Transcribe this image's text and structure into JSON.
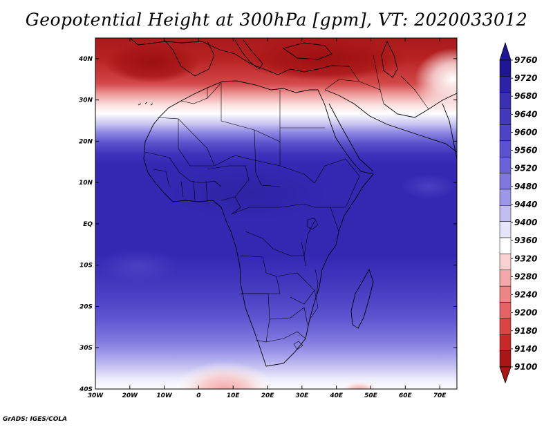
{
  "title": "Geopotential Height at 300hPa [gpm], VT: 2020033012",
  "footer": "GrADS: IGES/COLA",
  "map": {
    "lon_range": [
      -30,
      75
    ],
    "lat_range": [
      -40,
      45
    ],
    "lat_ticks": [
      {
        "value": 40,
        "label": "40N"
      },
      {
        "value": 30,
        "label": "30N"
      },
      {
        "value": 20,
        "label": "20N"
      },
      {
        "value": 10,
        "label": "10N"
      },
      {
        "value": 0,
        "label": "EQ"
      },
      {
        "value": -10,
        "label": "10S"
      },
      {
        "value": -20,
        "label": "20S"
      },
      {
        "value": -30,
        "label": "30S"
      },
      {
        "value": -40,
        "label": "40S"
      }
    ],
    "lon_ticks": [
      {
        "value": -30,
        "label": "30W"
      },
      {
        "value": -20,
        "label": "20W"
      },
      {
        "value": -10,
        "label": "10W"
      },
      {
        "value": 0,
        "label": "0"
      },
      {
        "value": 10,
        "label": "10E"
      },
      {
        "value": 20,
        "label": "20E"
      },
      {
        "value": 30,
        "label": "30E"
      },
      {
        "value": 40,
        "label": "40E"
      },
      {
        "value": 50,
        "label": "50E"
      },
      {
        "value": 60,
        "label": "60E"
      },
      {
        "value": 70,
        "label": "70E"
      }
    ]
  },
  "colorbar": {
    "labels": [
      "9760",
      "9720",
      "9680",
      "9640",
      "9600",
      "9560",
      "9520",
      "9480",
      "9440",
      "9400",
      "9360",
      "9320",
      "9280",
      "9240",
      "9200",
      "9180",
      "9140",
      "9100"
    ],
    "colors": [
      "#1e1696",
      "#2d22a8",
      "#3a30b4",
      "#4338be",
      "#4e44c8",
      "#5a52d0",
      "#6a62d8",
      "#8078e0",
      "#9e98ea",
      "#c2beef",
      "#e6e4f8",
      "#ffffff",
      "#fbd0d0",
      "#f5a8a8",
      "#ee8484",
      "#e66262",
      "#dc4444",
      "#c82828",
      "#aa1616"
    ],
    "top_arrow_color": "#1e1696",
    "bottom_arrow_color": "#aa1616"
  }
}
